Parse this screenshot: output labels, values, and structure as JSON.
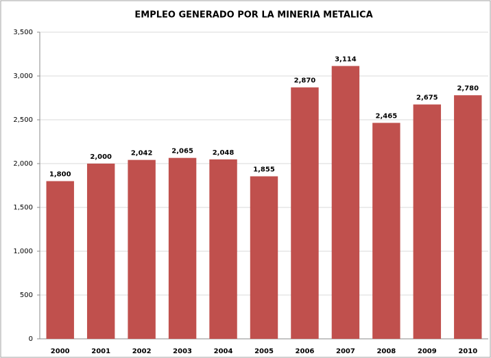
{
  "chart_data": {
    "type": "bar",
    "title": "EMPLEO GENERADO POR LA MINERIA METALICA",
    "categories": [
      "2000",
      "2001",
      "2002",
      "2003",
      "2004",
      "2005",
      "2006",
      "2007",
      "2008",
      "2009",
      "2010"
    ],
    "values": [
      1800,
      2000,
      2042,
      2065,
      2048,
      1855,
      2870,
      3114,
      2465,
      2675,
      2780
    ],
    "value_labels": [
      "1,800",
      "2,000",
      "2,042",
      "2,065",
      "2,048",
      "1,855",
      "2,870",
      "3,114",
      "2,465",
      "2,675",
      "2,780"
    ],
    "color": "#c0504d",
    "ylim": [
      0,
      3500
    ],
    "yticks": [
      0,
      500,
      {
        "value": 1000,
        "label": "1,000"
      },
      {
        "value": 1500,
        "label": "1,500"
      },
      {
        "value": 2000,
        "label": "2,000"
      },
      {
        "value": 2500,
        "label": "2,500"
      },
      {
        "value": 3000,
        "label": "3,000"
      },
      {
        "value": 3500,
        "label": "3,500"
      }
    ],
    "grid": true
  }
}
